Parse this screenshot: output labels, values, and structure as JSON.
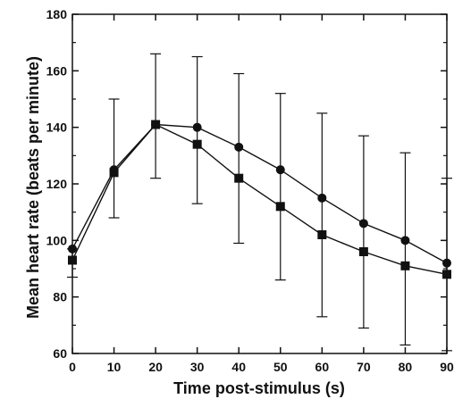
{
  "chart_data": {
    "type": "line",
    "title": "",
    "xlabel": "Time post-stimulus (s)",
    "ylabel": "Mean heart rate (beats per minute)",
    "xlim": [
      0,
      90
    ],
    "ylim": [
      60,
      180
    ],
    "x": [
      0,
      10,
      20,
      30,
      40,
      50,
      60,
      70,
      80,
      90
    ],
    "xticks": [
      0,
      10,
      20,
      30,
      40,
      50,
      60,
      70,
      80,
      90
    ],
    "yticks": [
      60,
      80,
      100,
      120,
      140,
      160,
      180
    ],
    "grid": false,
    "legend": "none",
    "series": [
      {
        "marker": "circle",
        "values": [
          97,
          125,
          141,
          140,
          133,
          125,
          115,
          106,
          100,
          92
        ]
      },
      {
        "marker": "square",
        "values": [
          93,
          124,
          141,
          134,
          122,
          112,
          102,
          96,
          91,
          88
        ],
        "error_bars": [
          [
            97,
            87
          ],
          [
            108,
            150
          ],
          [
            122,
            166
          ],
          [
            113,
            165
          ],
          [
            99,
            159
          ],
          [
            86,
            152
          ],
          [
            73,
            145
          ],
          [
            69,
            137
          ],
          [
            63,
            131
          ],
          [
            61,
            122
          ]
        ]
      }
    ],
    "colors": {
      "line": "#111111",
      "background": "#ffffff"
    }
  }
}
